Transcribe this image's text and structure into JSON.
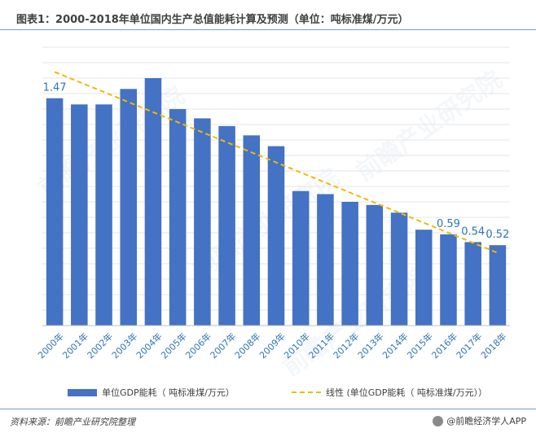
{
  "title": "图表1：2000-2018年单位国内生产总值能耗计算及预测（单位：吨标准煤/万元）",
  "legend": {
    "bar_label": "单位GDP能耗（ 吨标准煤/万元）",
    "line_label": "线性 (单位GDP能耗（ 吨标准煤/万元））"
  },
  "source": "资料来源：前瞻产业研究院整理",
  "brand": "@前瞻经济学人APP",
  "watermark": "前瞻产业研究院",
  "colors": {
    "bar": "#4472c4",
    "trend": "#f5b800",
    "label": "#2e75b6"
  },
  "chart_data": {
    "type": "bar",
    "categories": [
      "2000年",
      "2001年",
      "2002年",
      "2003年",
      "2004年",
      "2005年",
      "2006年",
      "2007年",
      "2008年",
      "2009年",
      "2010年",
      "2011年",
      "2012年",
      "2013年",
      "2014年",
      "2015年",
      "2016年",
      "2017年",
      "2018年"
    ],
    "series": [
      {
        "name": "单位GDP能耗（ 吨标准煤/万元）",
        "values": [
          1.47,
          1.43,
          1.43,
          1.53,
          1.6,
          1.4,
          1.34,
          1.29,
          1.23,
          1.16,
          0.87,
          0.85,
          0.8,
          0.78,
          0.73,
          0.62,
          0.59,
          0.54,
          0.52
        ],
        "data_labels": {
          "0": "1.47",
          "16": "0.59",
          "17": "0.54",
          "18": "0.52"
        }
      }
    ],
    "trendline": {
      "name": "线性 (单位GDP能耗（ 吨标准煤/万元））",
      "type": "linear",
      "start_value": 1.64,
      "end_value": 0.47
    },
    "ylim": [
      0,
      1.8
    ],
    "grid": true,
    "legend": "bottom"
  }
}
